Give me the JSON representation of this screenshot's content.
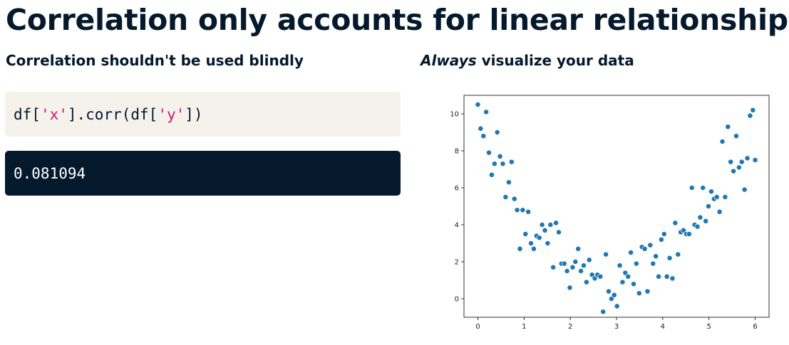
{
  "slide": {
    "title": "Correlation only accounts for linear relationships",
    "left_heading": "Correlation shouldn't be used blindly",
    "right_heading_emph": "Always",
    "right_heading_rest": " visualize your data"
  },
  "code": {
    "p1": "df[",
    "s1": "'x'",
    "p2": "].corr(df[",
    "s2": "'y'",
    "p3": "])"
  },
  "output": {
    "value": "0.081094"
  },
  "colors": {
    "point": "#1f77b4",
    "code_bg": "#f5f2ec",
    "output_bg": "#05192d",
    "string": "#d2176d"
  },
  "chart_data": {
    "type": "scatter",
    "xlim": [
      -0.3,
      6.3
    ],
    "ylim": [
      -1.0,
      11.0
    ],
    "xticks": [
      0,
      1,
      2,
      3,
      4,
      5,
      6
    ],
    "yticks": [
      0,
      2,
      4,
      6,
      8,
      10
    ],
    "grid": false,
    "series": [
      {
        "x": [
          0.0,
          0.06,
          0.12,
          0.18,
          0.24,
          0.3,
          0.36,
          0.42,
          0.48,
          0.54,
          0.6,
          0.67,
          0.73,
          0.79,
          0.85,
          0.91,
          0.97,
          1.03,
          1.09,
          1.15,
          1.21,
          1.27,
          1.33,
          1.39,
          1.45,
          1.51,
          1.57,
          1.63,
          1.69,
          1.75,
          1.81,
          1.87,
          1.93,
          1.99,
          2.05,
          2.11,
          2.17,
          2.23,
          2.29,
          2.35,
          2.41,
          2.47,
          2.53,
          2.59,
          2.65,
          2.71,
          2.77,
          2.83,
          2.89,
          2.95,
          3.01,
          3.07,
          3.13,
          3.19,
          3.25,
          3.31,
          3.37,
          3.43,
          3.49,
          3.55,
          3.61,
          3.67,
          3.73,
          3.79,
          3.85,
          3.91,
          3.97,
          4.03,
          4.09,
          4.15,
          4.21,
          4.27,
          4.33,
          4.39,
          4.45,
          4.51,
          4.57,
          4.63,
          4.69,
          4.75,
          4.81,
          4.87,
          4.93,
          4.99,
          5.05,
          5.11,
          5.17,
          5.23,
          5.29,
          5.35,
          5.41,
          5.47,
          5.53,
          5.59,
          5.65,
          5.71,
          5.77,
          5.83,
          5.89,
          5.95,
          6.0
        ],
        "y": [
          10.5,
          9.2,
          8.8,
          10.1,
          7.9,
          6.7,
          7.3,
          9.0,
          7.7,
          7.3,
          5.5,
          6.3,
          7.4,
          5.4,
          4.8,
          2.7,
          4.8,
          3.5,
          4.7,
          3.0,
          2.7,
          3.4,
          3.3,
          4.0,
          3.7,
          3.0,
          4.0,
          1.7,
          4.1,
          3.6,
          1.9,
          1.9,
          1.5,
          0.6,
          1.7,
          2.0,
          2.7,
          1.5,
          1.8,
          0.9,
          2.1,
          1.3,
          1.1,
          1.3,
          1.2,
          -0.7,
          2.4,
          0.4,
          0.0,
          0.2,
          -0.4,
          1.8,
          0.9,
          1.4,
          1.2,
          2.5,
          0.8,
          1.9,
          0.3,
          2.8,
          2.7,
          0.4,
          2.9,
          1.9,
          2.3,
          1.2,
          3.2,
          3.5,
          1.2,
          2.2,
          1.1,
          4.1,
          2.4,
          3.6,
          3.7,
          3.5,
          3.5,
          6.0,
          4.0,
          3.9,
          4.4,
          6.0,
          4.2,
          5.0,
          5.8,
          5.4,
          5.5,
          4.7,
          8.5,
          5.5,
          9.3,
          7.4,
          6.9,
          8.8,
          7.1,
          7.4,
          5.9,
          7.6,
          9.9,
          10.2,
          7.5
        ]
      }
    ]
  }
}
